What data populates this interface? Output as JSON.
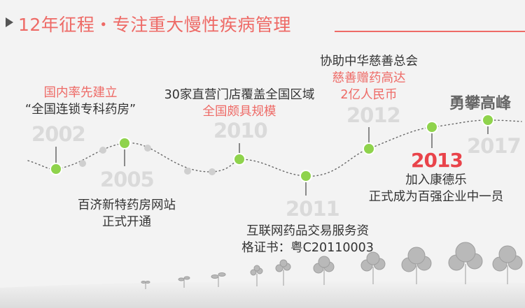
{
  "header": {
    "title": "12年征程・专注重大慢性疾病管理"
  },
  "timeline": {
    "years": [
      "2002",
      "2005",
      "2010",
      "2011",
      "2012",
      "2013",
      "2017"
    ],
    "events": {
      "e2002": [
        "国内率先建立",
        "“全国连锁专科药房”"
      ],
      "e2005": [
        "百济新特药房网站",
        "正式开通"
      ],
      "e2010": [
        "30家直营门店覆盖全国区域",
        "全国颇具规模"
      ],
      "e2011": [
        "互联网药品交易服务资",
        "格证书：粤C20110003"
      ],
      "e2012": [
        "协助中华慈善总会",
        "慈善赠药高达",
        "2亿人民币"
      ],
      "e2013": [
        "加入康德乐",
        "正式成为百强企业中一员"
      ]
    },
    "peak_label": "勇攀高峰"
  },
  "colors": {
    "accent": "#ee6a66",
    "year_highlight": "#e9434a",
    "node_fill": "#8fd34c",
    "node_ring": "#ffffff"
  }
}
